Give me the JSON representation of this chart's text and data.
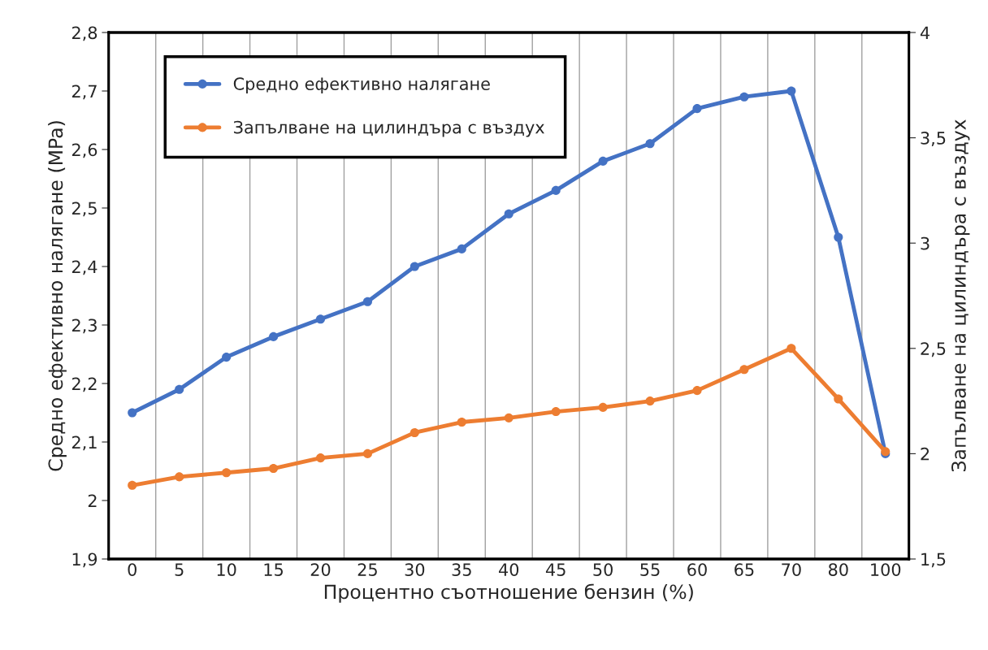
{
  "chart_data": {
    "type": "line",
    "xlabel": "Процентно съотношение бензин (%)",
    "ylabel": "Средно ефективно налягане (MPa)",
    "y2label": "Запълване на цилиндъра с въздух",
    "categories": [
      "0",
      "5",
      "10",
      "15",
      "20",
      "25",
      "30",
      "35",
      "40",
      "45",
      "50",
      "55",
      "60",
      "65",
      "70",
      "80",
      "100"
    ],
    "series": [
      {
        "name": "Средно ефективно налягане",
        "color": "#4472c4",
        "values": [
          2.15,
          2.19,
          2.245,
          2.28,
          2.31,
          2.34,
          2.4,
          2.43,
          2.49,
          2.53,
          2.58,
          2.61,
          2.67,
          2.69,
          2.7,
          2.45,
          2.08
        ]
      },
      {
        "name": "Запълване на цилиндъра с въздух",
        "color": "#ed7d31",
        "axis": "y2",
        "values": [
          1.85,
          1.89,
          1.91,
          1.93,
          1.98,
          2.0,
          2.1,
          2.15,
          2.17,
          2.2,
          2.22,
          2.25,
          2.3,
          2.4,
          2.5,
          2.26,
          2.01
        ]
      }
    ],
    "ylim": [
      1.9,
      2.8
    ],
    "yticks": [
      {
        "value": 1.9,
        "label": "1,9"
      },
      2,
      {
        "value": 2.1,
        "label": "2,1"
      },
      {
        "value": 2.2,
        "label": "2,2"
      },
      {
        "value": 2.3,
        "label": "2,3"
      },
      {
        "value": 2.4,
        "label": "2,4"
      },
      {
        "value": 2.5,
        "label": "2,5"
      },
      {
        "value": 2.6,
        "label": "2,6"
      },
      {
        "value": 2.7,
        "label": "2,7"
      },
      {
        "value": 2.8,
        "label": "2,8"
      }
    ],
    "y2lim": [
      1.5,
      4
    ],
    "y2ticks": [
      {
        "value": 1.5,
        "label": "1,5"
      },
      2,
      {
        "value": 2.5,
        "label": "2,5"
      },
      3,
      {
        "value": 3.5,
        "label": "3,5"
      },
      4
    ],
    "grid": "x",
    "legend": "top left",
    "marker": "circle",
    "line_style": "solid"
  }
}
